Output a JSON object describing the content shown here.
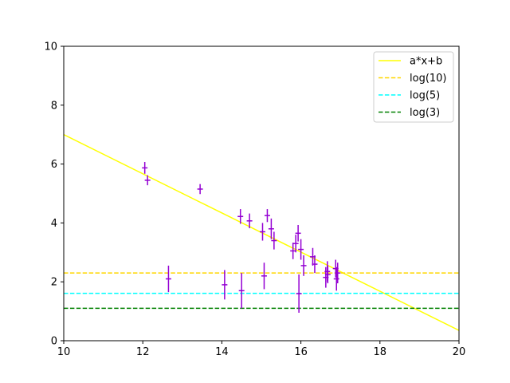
{
  "chart_data": {
    "type": "scatter",
    "title": "",
    "xlabel": "",
    "ylabel": "",
    "xlim": [
      10,
      20
    ],
    "ylim": [
      0,
      10
    ],
    "xticks": [
      "10",
      "12",
      "14",
      "16",
      "18",
      "20"
    ],
    "yticks": [
      "0",
      "2",
      "4",
      "6",
      "8",
      "10"
    ],
    "grid": false,
    "legend_position": "top-right",
    "colors": {
      "points": "#9400d3",
      "fit_line": "#ffff00",
      "log10": "#ffd700",
      "log5": "#00ffff",
      "log3": "#008000"
    },
    "series": [
      {
        "name": "a*x+b",
        "kind": "line",
        "style": "solid",
        "x": [
          10,
          20
        ],
        "y": [
          7.0,
          0.35
        ]
      },
      {
        "name": "log(10)",
        "kind": "hline",
        "style": "dashed",
        "y": 2.3
      },
      {
        "name": "log(5)",
        "kind": "hline",
        "style": "dashed",
        "y": 1.61
      },
      {
        "name": "log(3)",
        "kind": "hline",
        "style": "dashed",
        "y": 1.1
      },
      {
        "kind": "errorbar",
        "points": [
          {
            "x": 12.05,
            "y": 5.87,
            "err": 0.2
          },
          {
            "x": 12.12,
            "y": 5.45,
            "err": 0.17
          },
          {
            "x": 12.65,
            "y": 2.1,
            "err": 0.45
          },
          {
            "x": 13.45,
            "y": 5.15,
            "err": 0.17
          },
          {
            "x": 14.07,
            "y": 1.9,
            "err": 0.5
          },
          {
            "x": 14.47,
            "y": 4.22,
            "err": 0.25
          },
          {
            "x": 14.5,
            "y": 1.7,
            "err": 0.6
          },
          {
            "x": 14.7,
            "y": 4.07,
            "err": 0.25
          },
          {
            "x": 15.03,
            "y": 3.7,
            "err": 0.3
          },
          {
            "x": 15.07,
            "y": 2.2,
            "err": 0.45
          },
          {
            "x": 15.15,
            "y": 4.25,
            "err": 0.22
          },
          {
            "x": 15.25,
            "y": 3.8,
            "err": 0.35
          },
          {
            "x": 15.32,
            "y": 3.4,
            "err": 0.3
          },
          {
            "x": 15.8,
            "y": 3.05,
            "err": 0.28
          },
          {
            "x": 15.87,
            "y": 3.3,
            "err": 0.3
          },
          {
            "x": 15.93,
            "y": 3.65,
            "err": 0.28
          },
          {
            "x": 15.95,
            "y": 1.6,
            "err": 0.65
          },
          {
            "x": 16.0,
            "y": 3.1,
            "err": 0.35
          },
          {
            "x": 16.07,
            "y": 2.55,
            "err": 0.35
          },
          {
            "x": 16.3,
            "y": 2.85,
            "err": 0.3
          },
          {
            "x": 16.35,
            "y": 2.6,
            "err": 0.3
          },
          {
            "x": 16.63,
            "y": 2.15,
            "err": 0.35
          },
          {
            "x": 16.67,
            "y": 2.35,
            "err": 0.35
          },
          {
            "x": 16.68,
            "y": 2.25,
            "err": 0.3
          },
          {
            "x": 16.88,
            "y": 2.45,
            "err": 0.3
          },
          {
            "x": 16.9,
            "y": 2.1,
            "err": 0.4
          },
          {
            "x": 16.93,
            "y": 2.3,
            "err": 0.35
          }
        ]
      }
    ]
  }
}
